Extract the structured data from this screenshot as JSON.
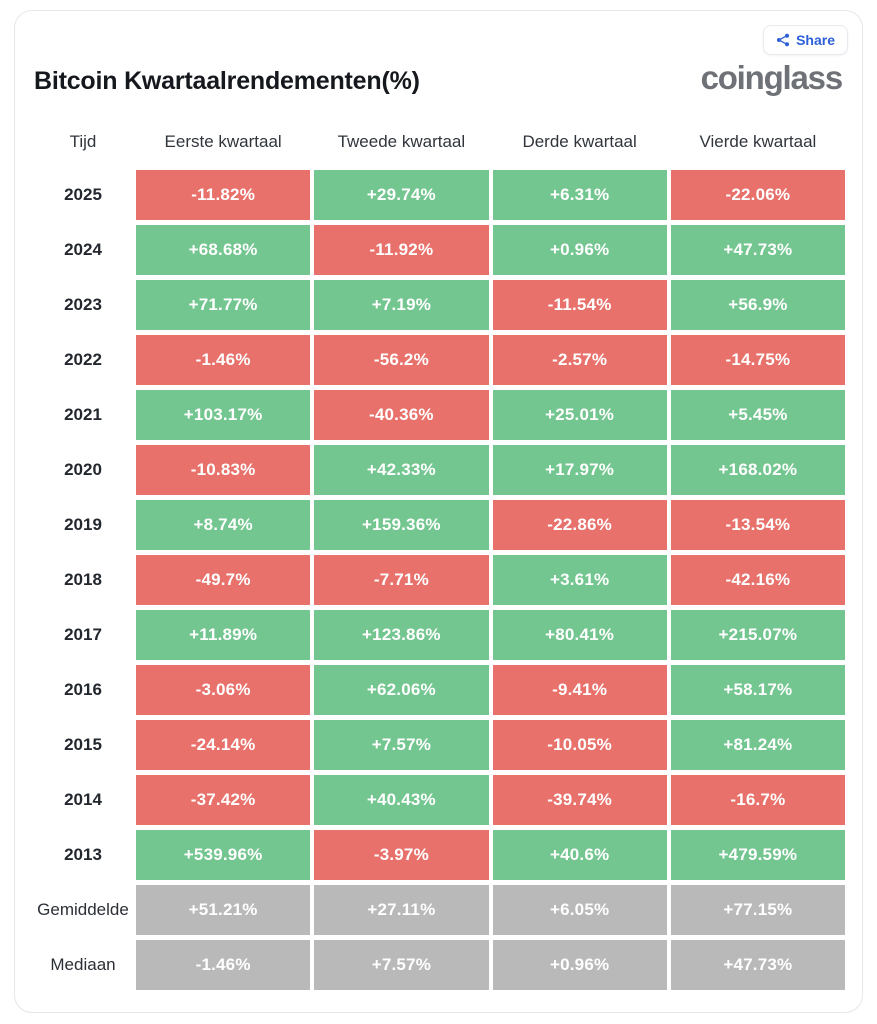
{
  "header": {
    "title": "Bitcoin Kwartaalrendementen(%)",
    "logo_text": "coinglass",
    "share_label": "Share"
  },
  "colors": {
    "positive_green": "#74c690",
    "negative_red": "#e8716b",
    "summary_gray": "#b9b9b9",
    "accent_blue": "#2c5fd8"
  },
  "chart_data": {
    "type": "table",
    "title": "Bitcoin Kwartaalrendementen(%)",
    "unit": "%",
    "columns": [
      "Tijd",
      "Eerste kwartaal",
      "Tweede kwartaal",
      "Derde kwartaal",
      "Vierde kwartaal"
    ],
    "value_format": "signed percent, green = positive, red = negative, gray = summary rows",
    "rows": [
      {
        "label": "2025",
        "values": [
          -11.82,
          29.74,
          6.31,
          -22.06
        ]
      },
      {
        "label": "2024",
        "values": [
          68.68,
          -11.92,
          0.96,
          47.73
        ]
      },
      {
        "label": "2023",
        "values": [
          71.77,
          7.19,
          -11.54,
          56.9
        ]
      },
      {
        "label": "2022",
        "values": [
          -1.46,
          -56.2,
          -2.57,
          -14.75
        ]
      },
      {
        "label": "2021",
        "values": [
          103.17,
          -40.36,
          25.01,
          5.45
        ]
      },
      {
        "label": "2020",
        "values": [
          -10.83,
          42.33,
          17.97,
          168.02
        ]
      },
      {
        "label": "2019",
        "values": [
          8.74,
          159.36,
          -22.86,
          -13.54
        ]
      },
      {
        "label": "2018",
        "values": [
          -49.7,
          -7.71,
          3.61,
          -42.16
        ]
      },
      {
        "label": "2017",
        "values": [
          11.89,
          123.86,
          80.41,
          215.07
        ]
      },
      {
        "label": "2016",
        "values": [
          -3.06,
          62.06,
          -9.41,
          58.17
        ]
      },
      {
        "label": "2015",
        "values": [
          -24.14,
          7.57,
          -10.05,
          81.24
        ]
      },
      {
        "label": "2014",
        "values": [
          -37.42,
          40.43,
          -39.74,
          -16.7
        ]
      },
      {
        "label": "2013",
        "values": [
          539.96,
          -3.97,
          40.6,
          479.59
        ]
      },
      {
        "label": "Gemiddelde",
        "values": [
          51.21,
          27.11,
          6.05,
          77.15
        ],
        "summary": true
      },
      {
        "label": "Mediaan",
        "values": [
          -1.46,
          7.57,
          0.96,
          47.73
        ],
        "summary": true
      }
    ]
  }
}
